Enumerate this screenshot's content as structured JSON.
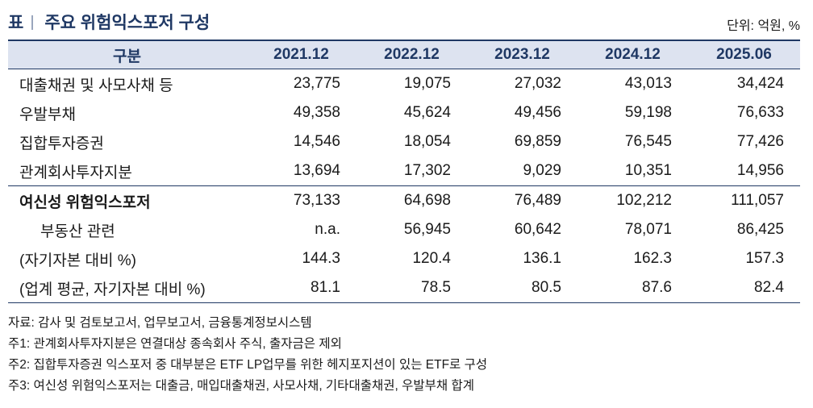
{
  "header": {
    "table_prefix": "표",
    "title": "주요 위험익스포저 구성",
    "unit": "단위: 억원, %"
  },
  "table": {
    "columns": [
      "구분",
      "2021.12",
      "2022.12",
      "2023.12",
      "2024.12",
      "2025.06"
    ],
    "rows": [
      {
        "label": "대출채권 및 사모사채 등",
        "values": [
          "23,775",
          "19,075",
          "27,032",
          "43,013",
          "34,424"
        ]
      },
      {
        "label": "우발부채",
        "values": [
          "49,358",
          "45,624",
          "49,456",
          "59,198",
          "76,633"
        ]
      },
      {
        "label": "집합투자증권",
        "values": [
          "14,546",
          "18,054",
          "69,859",
          "76,545",
          "77,426"
        ]
      },
      {
        "label": "관계회사투자지분",
        "values": [
          "13,694",
          "17,302",
          "9,029",
          "10,351",
          "14,956"
        ]
      },
      {
        "label": "여신성 위험익스포저",
        "values": [
          "73,133",
          "64,698",
          "76,489",
          "102,212",
          "111,057"
        ]
      },
      {
        "label": "부동산 관련",
        "values": [
          "n.a.",
          "56,945",
          "60,642",
          "78,071",
          "86,425"
        ]
      },
      {
        "label": "(자기자본 대비 %)",
        "values": [
          "144.3",
          "120.4",
          "136.1",
          "162.3",
          "157.3"
        ]
      },
      {
        "label": "(업계 평균, 자기자본 대비 %)",
        "values": [
          "81.1",
          "78.5",
          "80.5",
          "87.6",
          "82.4"
        ]
      }
    ]
  },
  "notes": [
    "자료: 감사 및 검토보고서, 업무보고서, 금융통계정보시스템",
    "주1: 관계회사투자지분은 연결대상 종속회사 주식, 출자금은 제외",
    "주2: 집합투자증권 익스포저 중 대부분은 ETF LP업무를 위한 헤지포지션이 있는 ETF로 구성",
    "주3: 여신성 위험익스포저는 대출금, 매입대출채권, 사모사채, 기타대출채권, 우발부채 합계"
  ]
}
